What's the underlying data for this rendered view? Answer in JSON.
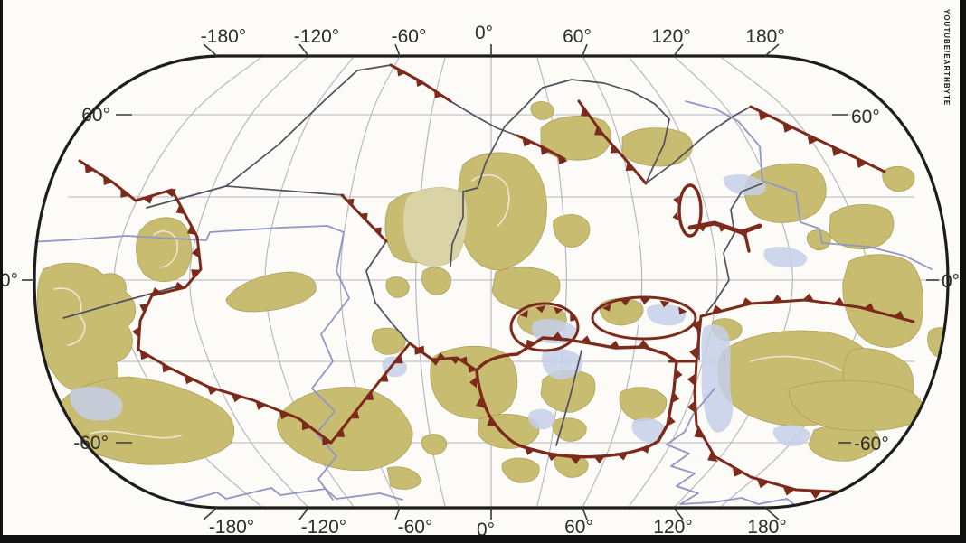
{
  "frame": {
    "watermark": "YOUTUBE/EARTHBYTE"
  },
  "map": {
    "axis": {
      "top": [
        "-180°",
        "-120°",
        "-60°",
        "0°",
        "60°",
        "120°",
        "180°"
      ],
      "bottom": [
        "-180°",
        "-120°",
        "-60°",
        "0°",
        "60°",
        "120°",
        "180°"
      ],
      "left": [
        "60°",
        "0°",
        "-60°"
      ],
      "right": [
        "60°",
        "0°",
        "-60°"
      ]
    },
    "colors": {
      "continent": "#c7bc70",
      "continent_light": "#dad3a6",
      "continent_vein": "#ece7d2",
      "shallow_sea": "#c4cfe9",
      "subduction_zone": "#7c2a1b",
      "plate_boundary_dark": "#50505e",
      "plate_boundary_light": "#9296c4",
      "graticule": "#b3b3bd",
      "map_outline": "#1d1d1d",
      "label": "#2d2d2d"
    }
  }
}
